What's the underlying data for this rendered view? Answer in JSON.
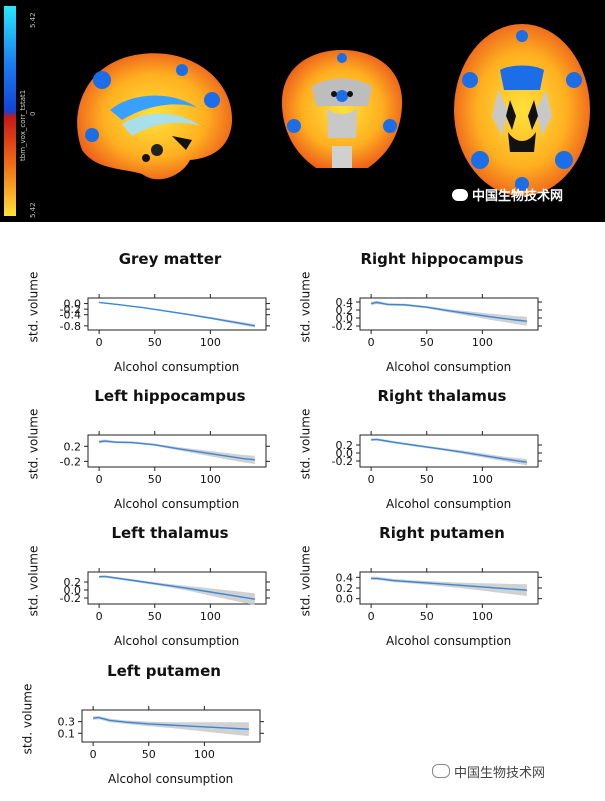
{
  "brain": {
    "colorbar": {
      "top_label": "5.42",
      "mid_label": "0",
      "bottom_label": "5.42",
      "title": "tbm_vox_corr_tstat1",
      "colors": [
        "#29e7ff",
        "#1a7cf0",
        "#1244d8",
        "#c81818",
        "#f06a12",
        "#ffe23a"
      ]
    },
    "watermark_top": "中国生物技术网"
  },
  "watermark_bottom": "中国生物技术网",
  "chart_data": [
    {
      "type": "line",
      "title": "Grey matter",
      "xlabel": "Alcohol consumption",
      "ylabel": "std. volume",
      "xlim": [
        -10,
        150
      ],
      "ylim": [
        -0.95,
        0.2
      ],
      "xticks": [
        0,
        50,
        100
      ],
      "yticks": [
        0.0,
        -0.2,
        -0.4,
        -0.8
      ],
      "ytick_labels": [
        "0.0",
        "-0.2",
        "-0.4",
        "-0.8"
      ],
      "x": [
        0,
        20,
        40,
        60,
        80,
        100,
        120,
        140
      ],
      "y": [
        0.04,
        -0.05,
        -0.15,
        -0.27,
        -0.39,
        -0.52,
        -0.66,
        -0.8
      ],
      "ci": [
        0.02,
        0.02,
        0.02,
        0.025,
        0.03,
        0.04,
        0.05,
        0.06
      ],
      "color": "#3a86d8"
    },
    {
      "type": "line",
      "title": "Right hippocampus",
      "xlabel": "Alcohol consumption",
      "ylabel": "std. volume",
      "xlim": [
        -10,
        150
      ],
      "ylim": [
        -0.3,
        0.5
      ],
      "xticks": [
        0,
        50,
        100
      ],
      "yticks": [
        0.4,
        0.2,
        0.0,
        -0.2
      ],
      "ytick_labels": [
        "0.4",
        "0.2",
        "0.0",
        "-0.2"
      ],
      "x": [
        0,
        5,
        15,
        30,
        50,
        70,
        90,
        110,
        130,
        140
      ],
      "y": [
        0.36,
        0.39,
        0.34,
        0.33,
        0.27,
        0.18,
        0.1,
        0.02,
        -0.05,
        -0.08
      ],
      "ci": [
        0.04,
        0.04,
        0.03,
        0.03,
        0.03,
        0.04,
        0.06,
        0.08,
        0.1,
        0.11
      ],
      "color": "#3a86d8"
    },
    {
      "type": "line",
      "title": "Left hippocampus",
      "xlabel": "Alcohol consumption",
      "ylabel": "std. volume",
      "xlim": [
        -10,
        150
      ],
      "ylim": [
        -0.35,
        0.5
      ],
      "xticks": [
        0,
        50,
        100
      ],
      "yticks": [
        0.2,
        -0.2
      ],
      "ytick_labels": [
        "0.2",
        "-0.2"
      ],
      "x": [
        0,
        5,
        15,
        30,
        50,
        70,
        90,
        110,
        130,
        140
      ],
      "y": [
        0.32,
        0.34,
        0.31,
        0.3,
        0.24,
        0.14,
        0.05,
        -0.04,
        -0.13,
        -0.16
      ],
      "ci": [
        0.04,
        0.04,
        0.03,
        0.03,
        0.03,
        0.04,
        0.06,
        0.08,
        0.1,
        0.11
      ],
      "color": "#3a86d8"
    },
    {
      "type": "line",
      "title": "Right thalamus",
      "xlabel": "Alcohol consumption",
      "ylabel": "std. volume",
      "xlim": [
        -10,
        150
      ],
      "ylim": [
        -0.35,
        0.45
      ],
      "xticks": [
        0,
        50,
        100
      ],
      "yticks": [
        0.2,
        0.0,
        -0.2
      ],
      "ytick_labels": [
        "0.2",
        "0.0",
        "-0.2"
      ],
      "x": [
        0,
        5,
        20,
        40,
        60,
        80,
        100,
        120,
        140
      ],
      "y": [
        0.33,
        0.34,
        0.27,
        0.19,
        0.11,
        0.03,
        -0.06,
        -0.15,
        -0.23
      ],
      "ci": [
        0.03,
        0.03,
        0.03,
        0.03,
        0.03,
        0.04,
        0.05,
        0.06,
        0.08
      ],
      "color": "#3a86d8"
    },
    {
      "type": "line",
      "title": "Left thalamus",
      "xlabel": "Alcohol consumption",
      "ylabel": "std. volume",
      "xlim": [
        -10,
        150
      ],
      "ylim": [
        -0.35,
        0.45
      ],
      "xticks": [
        0,
        50,
        100
      ],
      "yticks": [
        0.2,
        0.0,
        -0.2
      ],
      "ytick_labels": [
        "0.2",
        "0.0",
        "-0.2"
      ],
      "x": [
        0,
        5,
        20,
        40,
        60,
        80,
        100,
        120,
        140
      ],
      "y": [
        0.33,
        0.34,
        0.28,
        0.2,
        0.12,
        0.04,
        -0.05,
        -0.14,
        -0.23
      ],
      "ci": [
        0.03,
        0.03,
        0.03,
        0.03,
        0.04,
        0.06,
        0.09,
        0.12,
        0.15
      ],
      "color": "#3a86d8"
    },
    {
      "type": "line",
      "title": "Right putamen",
      "xlabel": "Alcohol consumption",
      "ylabel": "std. volume",
      "xlim": [
        -10,
        150
      ],
      "ylim": [
        -0.1,
        0.5
      ],
      "xticks": [
        0,
        50,
        100
      ],
      "yticks": [
        0.4,
        0.2,
        0.0
      ],
      "ytick_labels": [
        "0.4",
        "0.2",
        "0.0"
      ],
      "x": [
        0,
        5,
        20,
        40,
        60,
        80,
        100,
        120,
        140
      ],
      "y": [
        0.38,
        0.38,
        0.34,
        0.31,
        0.28,
        0.25,
        0.22,
        0.19,
        0.16
      ],
      "ci": [
        0.03,
        0.03,
        0.03,
        0.03,
        0.04,
        0.05,
        0.07,
        0.09,
        0.11
      ],
      "color": "#3a86d8"
    },
    {
      "type": "line",
      "title": "Left putamen",
      "xlabel": "Alcohol consumption",
      "ylabel": "std. volume",
      "xlim": [
        -10,
        150
      ],
      "ylim": [
        -0.05,
        0.5
      ],
      "xticks": [
        0,
        50,
        100
      ],
      "yticks": [
        0.3,
        0.1
      ],
      "ytick_labels": [
        "0.3",
        "0.1"
      ],
      "x": [
        0,
        5,
        15,
        30,
        50,
        70,
        90,
        110,
        130,
        140
      ],
      "y": [
        0.36,
        0.37,
        0.32,
        0.29,
        0.26,
        0.24,
        0.22,
        0.2,
        0.18,
        0.17
      ],
      "ci": [
        0.03,
        0.03,
        0.03,
        0.03,
        0.04,
        0.05,
        0.07,
        0.09,
        0.11,
        0.12
      ],
      "color": "#3a86d8"
    }
  ]
}
